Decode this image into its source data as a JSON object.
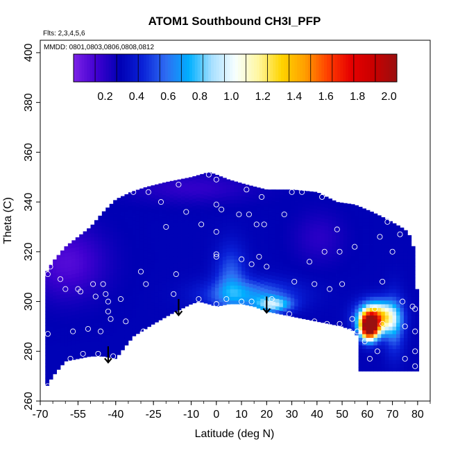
{
  "chart_data": {
    "type": "heatmap",
    "title": "ATOM1 Southbound CH3I_PFP",
    "flights_label": "Flts: 2,3,4,5,6",
    "dates_label": "MMDD: 0801,0803,0806,0808,0812",
    "xlabel": "Latitude (deg N)",
    "ylabel": "Theta (C)",
    "xlim": [
      -70,
      85
    ],
    "ylim": [
      260,
      405
    ],
    "x_ticks": [
      -70,
      -55,
      -40,
      -25,
      -10,
      0,
      10,
      20,
      30,
      40,
      50,
      60,
      70,
      80
    ],
    "x_tick_labels": [
      "-70",
      "-55",
      "-40",
      "-25",
      "-10",
      "0",
      "10",
      "20",
      "30",
      "40",
      "50",
      "60",
      "70",
      "80"
    ],
    "y_ticks": [
      260,
      280,
      300,
      320,
      340,
      360,
      380,
      400
    ],
    "y_tick_labels": [
      "260",
      "280",
      "300",
      "320",
      "340",
      "360",
      "380",
      "400"
    ],
    "colorbar": {
      "range": [
        0.0,
        2.05
      ],
      "ticks": [
        0.2,
        0.4,
        0.6,
        0.8,
        1.0,
        1.2,
        1.4,
        1.6,
        1.8,
        2.0
      ],
      "tick_labels": [
        "0.2",
        "0.4",
        "0.6",
        "0.8",
        "1.0",
        "1.2",
        "1.4",
        "1.6",
        "1.8",
        "2.0"
      ],
      "colors": [
        "#7b22e6",
        "#3f00d0",
        "#0000b4",
        "#0a22d8",
        "#2e6cf2",
        "#00b0ff",
        "#a8e0ff",
        "#f8ffff",
        "#fff7a0",
        "#ffd400",
        "#ffa000",
        "#ff4000",
        "#e60000",
        "#c80000",
        "#9a1010"
      ]
    },
    "arrows": [
      {
        "lat": -43,
        "theta": 282
      },
      {
        "lat": -15,
        "theta": 301
      },
      {
        "lat": 20,
        "theta": 302
      }
    ],
    "samples": [
      {
        "lat": -67,
        "theta": 266
      },
      {
        "lat": -67,
        "theta": 287
      },
      {
        "lat": -67,
        "theta": 311
      },
      {
        "lat": -66,
        "theta": 314
      },
      {
        "lat": -62,
        "theta": 309
      },
      {
        "lat": -60,
        "theta": 305
      },
      {
        "lat": -58,
        "theta": 277
      },
      {
        "lat": -57,
        "theta": 288
      },
      {
        "lat": -55,
        "theta": 305
      },
      {
        "lat": -54,
        "theta": 304
      },
      {
        "lat": -53,
        "theta": 279
      },
      {
        "lat": -51,
        "theta": 289
      },
      {
        "lat": -49,
        "theta": 307
      },
      {
        "lat": -48,
        "theta": 302
      },
      {
        "lat": -47,
        "theta": 279
      },
      {
        "lat": -46,
        "theta": 288
      },
      {
        "lat": -45,
        "theta": 307
      },
      {
        "lat": -44,
        "theta": 303
      },
      {
        "lat": -43,
        "theta": 300
      },
      {
        "lat": -43,
        "theta": 296
      },
      {
        "lat": -42,
        "theta": 293
      },
      {
        "lat": -41,
        "theta": 278
      },
      {
        "lat": -38,
        "theta": 301
      },
      {
        "lat": -36,
        "theta": 292
      },
      {
        "lat": -33,
        "theta": 344
      },
      {
        "lat": -30,
        "theta": 312
      },
      {
        "lat": -29,
        "theta": 288
      },
      {
        "lat": -29,
        "theta": 286
      },
      {
        "lat": -28,
        "theta": 307
      },
      {
        "lat": -27,
        "theta": 344
      },
      {
        "lat": -22,
        "theta": 340
      },
      {
        "lat": -20,
        "theta": 330
      },
      {
        "lat": -18,
        "theta": 292
      },
      {
        "lat": -17,
        "theta": 303
      },
      {
        "lat": -16,
        "theta": 311
      },
      {
        "lat": -15,
        "theta": 347
      },
      {
        "lat": -12,
        "theta": 336
      },
      {
        "lat": -6,
        "theta": 331
      },
      {
        "lat": -7,
        "theta": 301
      },
      {
        "lat": -3,
        "theta": 351
      },
      {
        "lat": 0,
        "theta": 349
      },
      {
        "lat": 0,
        "theta": 339
      },
      {
        "lat": 0,
        "theta": 328
      },
      {
        "lat": 0,
        "theta": 319
      },
      {
        "lat": 0,
        "theta": 318
      },
      {
        "lat": 0,
        "theta": 299
      },
      {
        "lat": 2,
        "theta": 337
      },
      {
        "lat": 4,
        "theta": 301
      },
      {
        "lat": 9,
        "theta": 335
      },
      {
        "lat": 10,
        "theta": 317
      },
      {
        "lat": 10,
        "theta": 300
      },
      {
        "lat": 12,
        "theta": 345
      },
      {
        "lat": 13,
        "theta": 335
      },
      {
        "lat": 14,
        "theta": 315
      },
      {
        "lat": 14,
        "theta": 300
      },
      {
        "lat": 16,
        "theta": 331
      },
      {
        "lat": 17,
        "theta": 318
      },
      {
        "lat": 18,
        "theta": 342
      },
      {
        "lat": 19,
        "theta": 331
      },
      {
        "lat": 20,
        "theta": 314
      },
      {
        "lat": 22,
        "theta": 301
      },
      {
        "lat": 27,
        "theta": 335
      },
      {
        "lat": 29,
        "theta": 295
      },
      {
        "lat": 30,
        "theta": 344
      },
      {
        "lat": 31,
        "theta": 308
      },
      {
        "lat": 34,
        "theta": 344
      },
      {
        "lat": 37,
        "theta": 316
      },
      {
        "lat": 39,
        "theta": 307
      },
      {
        "lat": 39,
        "theta": 292
      },
      {
        "lat": 42,
        "theta": 342
      },
      {
        "lat": 43,
        "theta": 320
      },
      {
        "lat": 44,
        "theta": 291
      },
      {
        "lat": 45,
        "theta": 305
      },
      {
        "lat": 48,
        "theta": 329
      },
      {
        "lat": 49,
        "theta": 291
      },
      {
        "lat": 49,
        "theta": 320
      },
      {
        "lat": 50,
        "theta": 307
      },
      {
        "lat": 53,
        "theta": 288
      },
      {
        "lat": 54,
        "theta": 293
      },
      {
        "lat": 55,
        "theta": 322
      },
      {
        "lat": 56,
        "theta": 288
      },
      {
        "lat": 59,
        "theta": 284
      },
      {
        "lat": 61,
        "theta": 277
      },
      {
        "lat": 63,
        "theta": 297
      },
      {
        "lat": 64,
        "theta": 280
      },
      {
        "lat": 65,
        "theta": 326
      },
      {
        "lat": 66,
        "theta": 308
      },
      {
        "lat": 66,
        "theta": 291
      },
      {
        "lat": 68,
        "theta": 332
      },
      {
        "lat": 70,
        "theta": 320
      },
      {
        "lat": 73,
        "theta": 327
      },
      {
        "lat": 74,
        "theta": 300
      },
      {
        "lat": 75,
        "theta": 290
      },
      {
        "lat": 75,
        "theta": 277
      },
      {
        "lat": 77,
        "theta": 336
      },
      {
        "lat": 78,
        "theta": 298
      },
      {
        "lat": 79,
        "theta": 297
      },
      {
        "lat": 79,
        "theta": 288
      },
      {
        "lat": 79,
        "theta": 280
      },
      {
        "lat": 79,
        "theta": 274
      }
    ]
  }
}
